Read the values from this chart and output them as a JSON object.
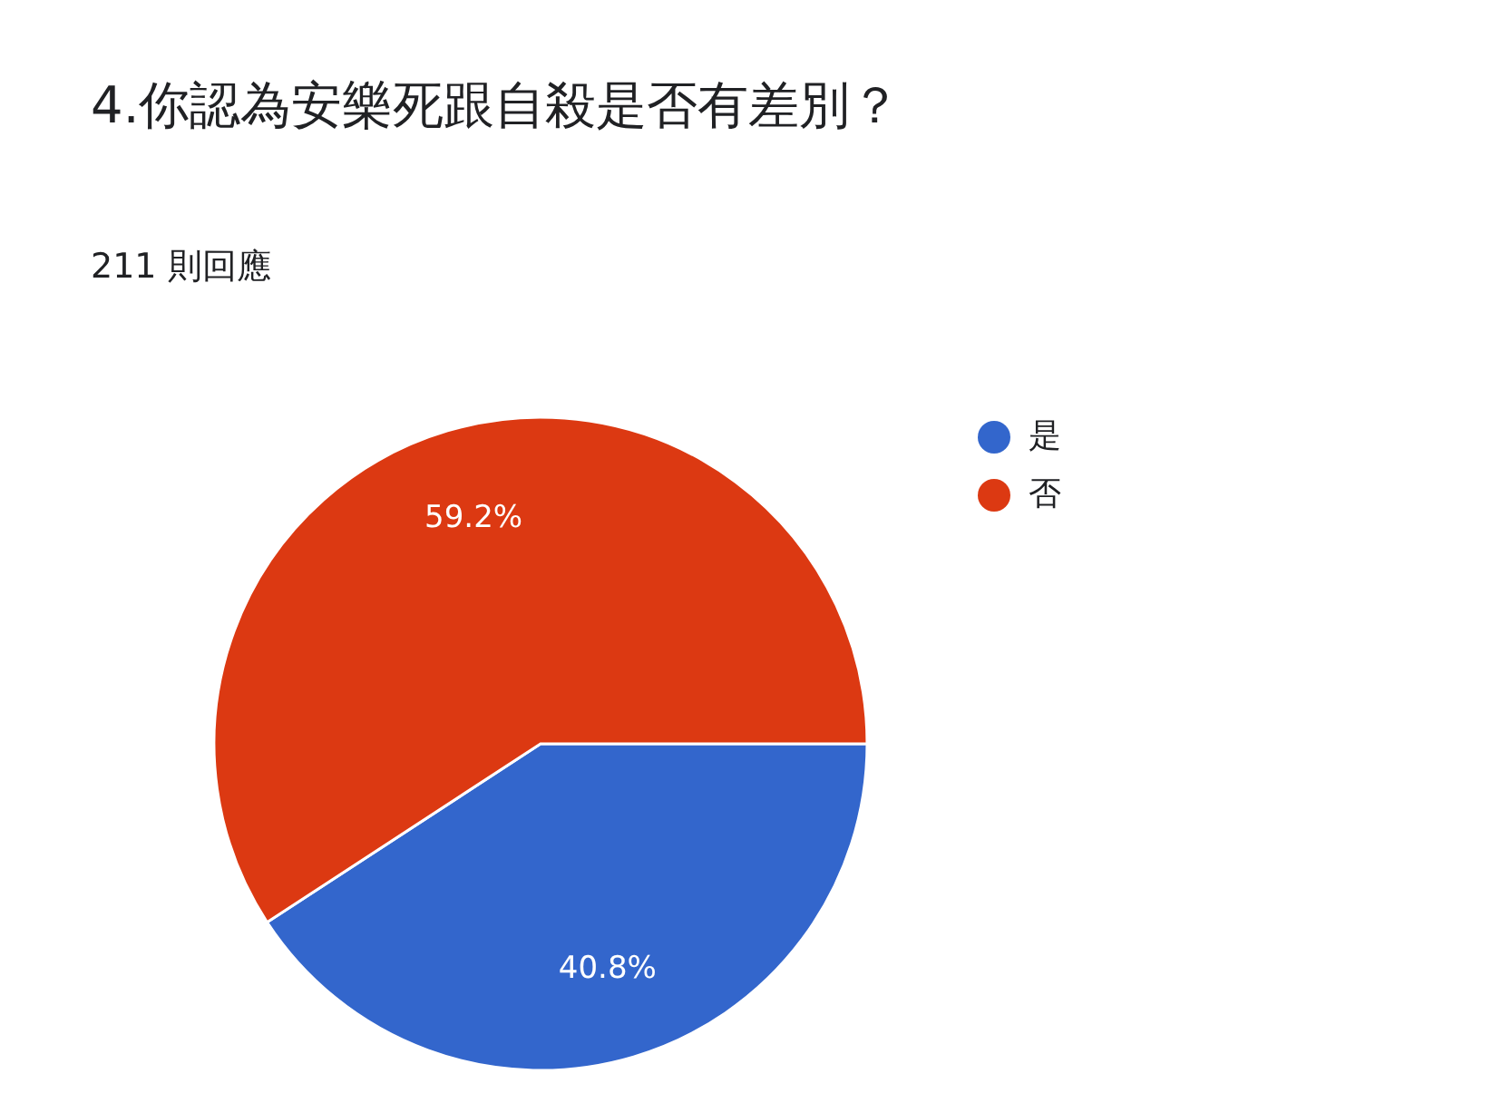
{
  "chart_data": {
    "type": "pie",
    "title": "4.你認為安樂死跟自殺是否有差別？",
    "subtitle": "211 則回應",
    "categories": [
      "是",
      "否"
    ],
    "values": [
      40.8,
      59.2
    ],
    "colors": [
      "#3366cc",
      "#dc3912"
    ],
    "value_labels": [
      "40.8%",
      "59.2%"
    ],
    "legend": "top right"
  }
}
